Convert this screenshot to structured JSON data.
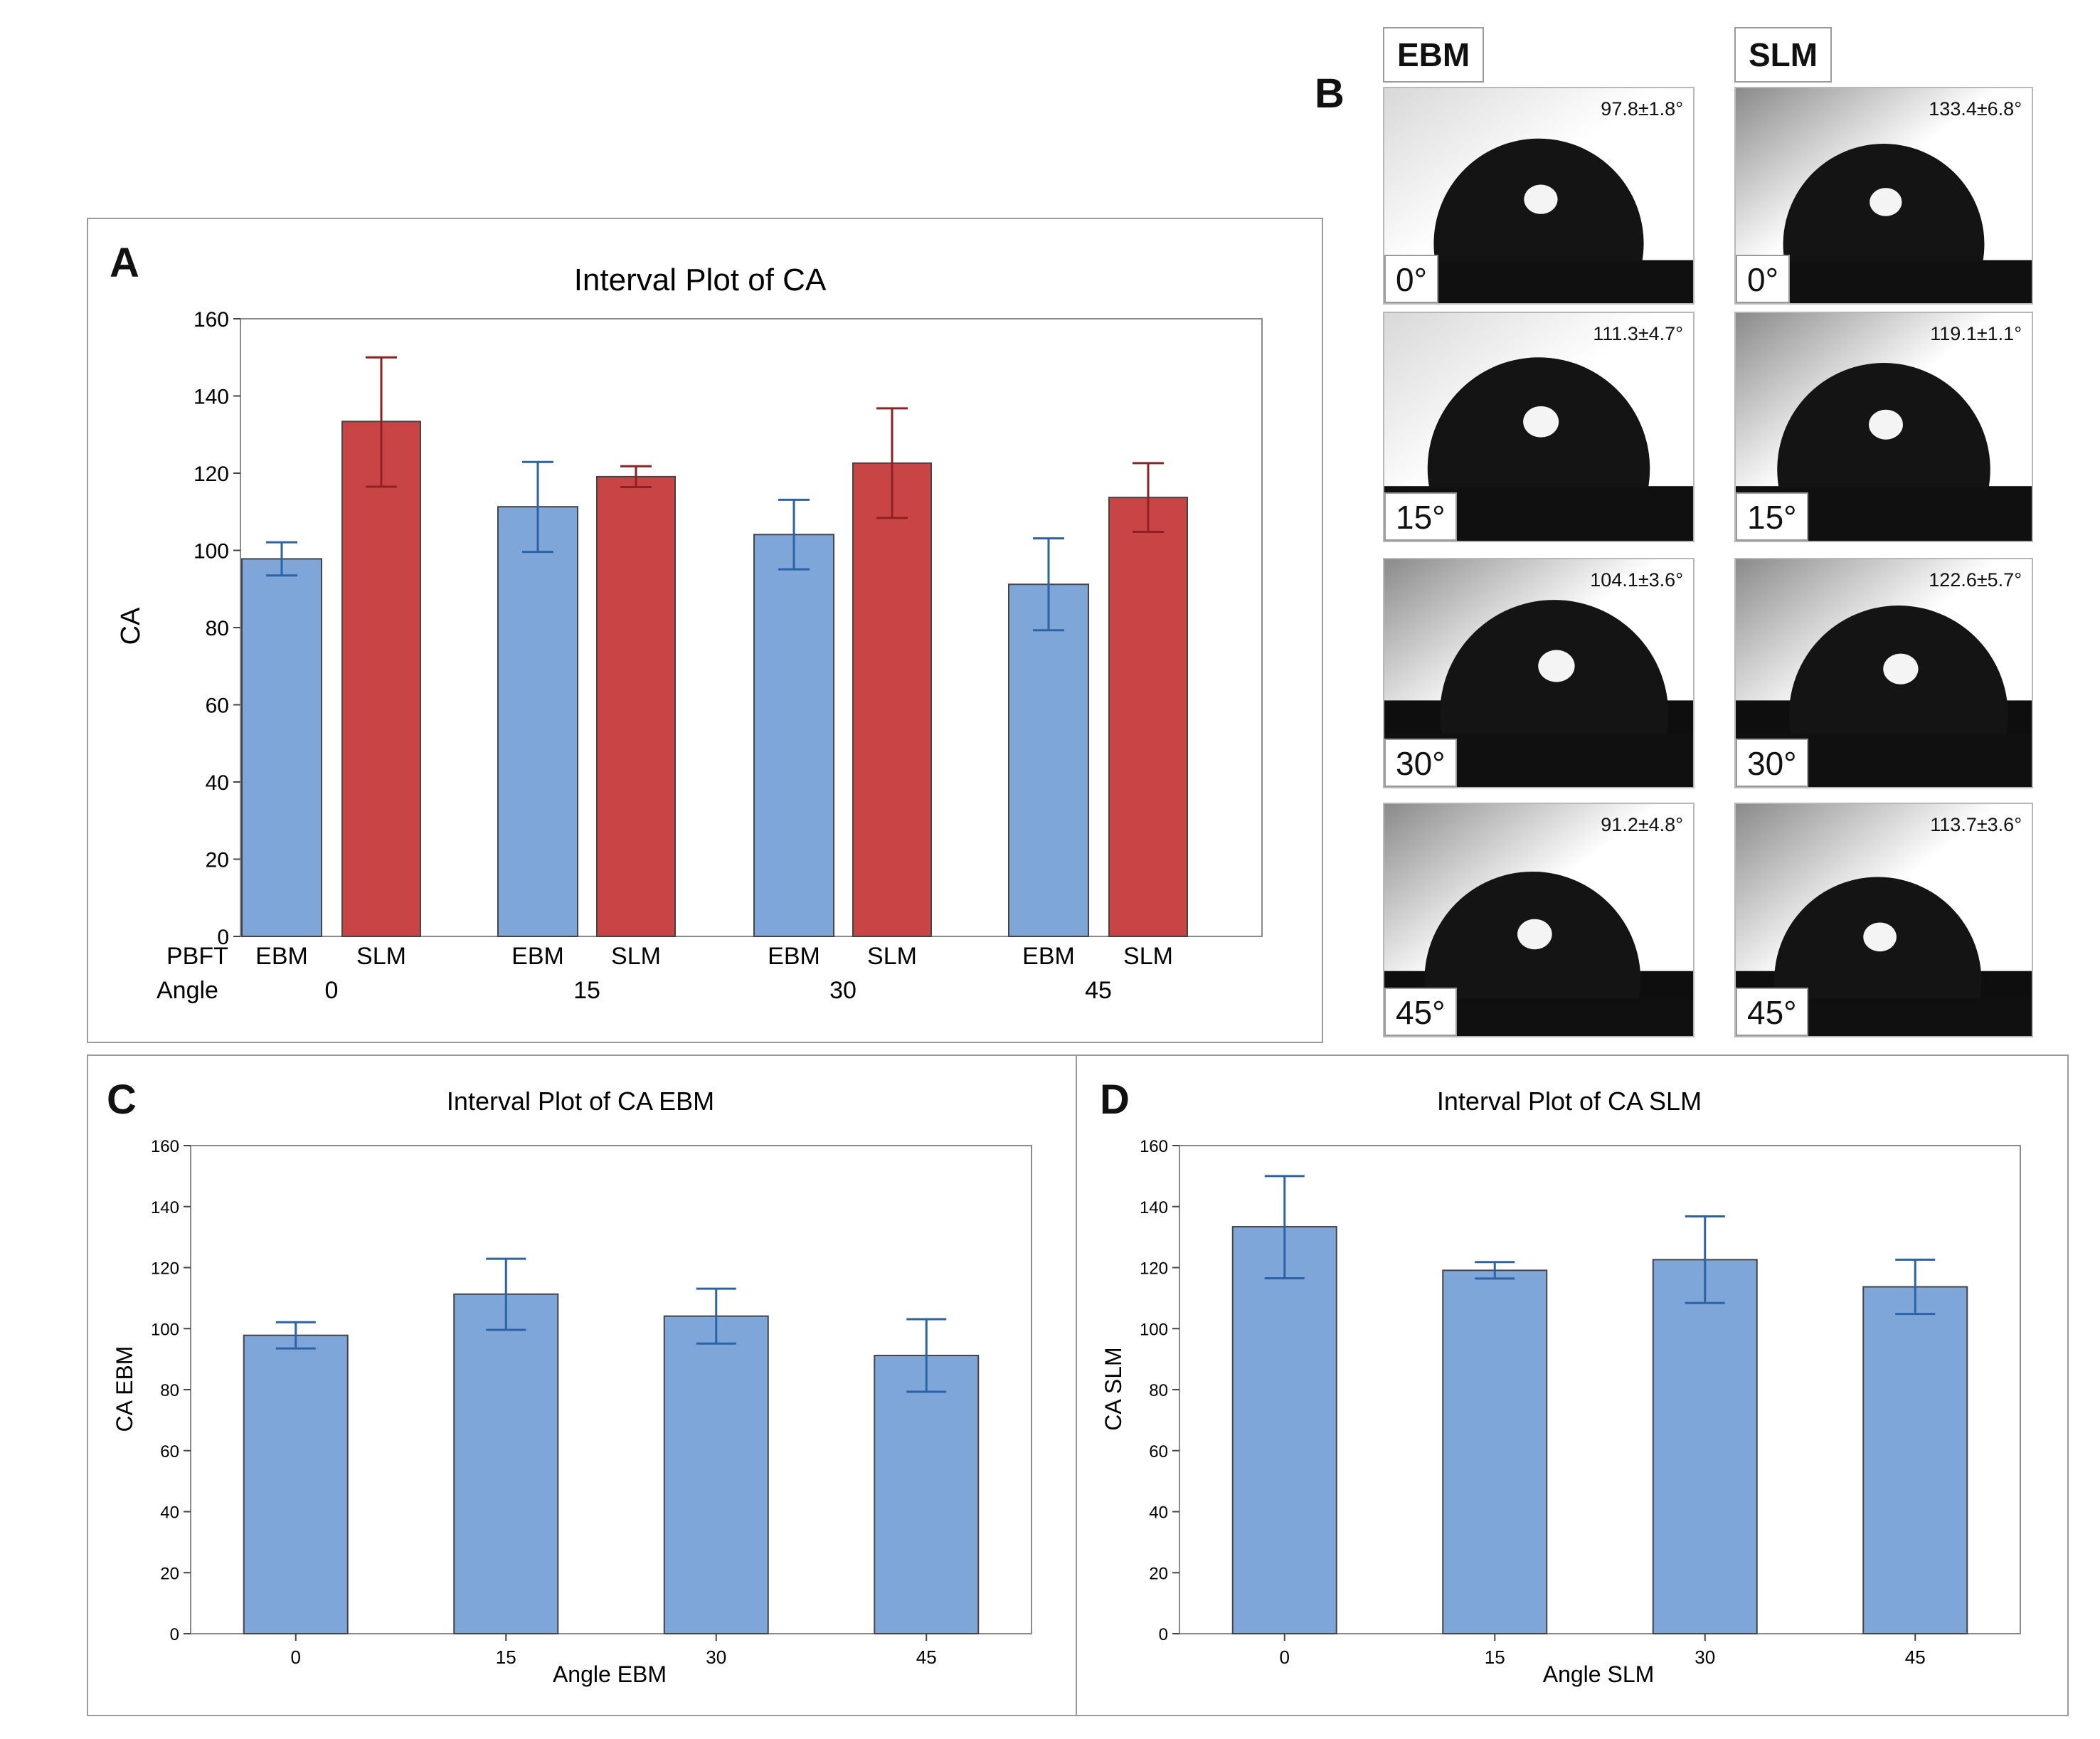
{
  "panel_letters": {
    "a": "A",
    "b": "B",
    "c": "C",
    "d": "D"
  },
  "chart_data": [
    {
      "type": "bar",
      "title": "Interval Plot of CA",
      "ylabel": "CA",
      "ylim": [
        0,
        160
      ],
      "yticks": [
        "0",
        "20",
        "40",
        "60",
        "80",
        "100",
        "120",
        "140",
        "160"
      ],
      "row_labels": {
        "pbft": "PBFT",
        "angle": "Angle"
      },
      "groups": [
        "0",
        "15",
        "30",
        "45"
      ],
      "bar_labels": [
        "EBM",
        "SLM"
      ],
      "colors": {
        "EBM": "#7ea6d8",
        "SLM": "#c94545"
      },
      "errbar_colors": {
        "EBM": "#2a63a6",
        "SLM": "#8e2222"
      },
      "series": [
        {
          "group": "0",
          "pbft": "EBM",
          "value": 97.8,
          "low": 93.5,
          "high": 102.1
        },
        {
          "group": "0",
          "pbft": "SLM",
          "value": 133.4,
          "low": 116.5,
          "high": 150.0
        },
        {
          "group": "15",
          "pbft": "EBM",
          "value": 111.3,
          "low": 99.6,
          "high": 122.9
        },
        {
          "group": "15",
          "pbft": "SLM",
          "value": 119.1,
          "low": 116.4,
          "high": 121.8
        },
        {
          "group": "30",
          "pbft": "EBM",
          "value": 104.1,
          "low": 95.1,
          "high": 113.1
        },
        {
          "group": "30",
          "pbft": "SLM",
          "value": 122.6,
          "low": 108.4,
          "high": 136.8
        },
        {
          "group": "45",
          "pbft": "EBM",
          "value": 91.2,
          "low": 79.3,
          "high": 103.1
        },
        {
          "group": "45",
          "pbft": "SLM",
          "value": 113.7,
          "low": 104.8,
          "high": 122.6
        }
      ]
    },
    {
      "type": "bar",
      "title": "Interval Plot of CA EBM",
      "xlabel": "Angle EBM",
      "ylabel": "CA EBM",
      "ylim": [
        0,
        160
      ],
      "yticks": [
        "0",
        "20",
        "40",
        "60",
        "80",
        "100",
        "120",
        "140",
        "160"
      ],
      "categories": [
        "0",
        "15",
        "30",
        "45"
      ],
      "values": [
        97.8,
        111.3,
        104.1,
        91.2
      ],
      "low": [
        93.5,
        99.6,
        95.1,
        79.3
      ],
      "high": [
        102.1,
        122.9,
        113.1,
        103.1
      ],
      "color": "#7ea6d8",
      "errbar_color": "#2a63a6"
    },
    {
      "type": "bar",
      "title": "Interval Plot of CA SLM",
      "xlabel": "Angle SLM",
      "ylabel": "CA SLM",
      "ylim": [
        0,
        160
      ],
      "yticks": [
        "0",
        "20",
        "40",
        "60",
        "80",
        "100",
        "120",
        "140",
        "160"
      ],
      "categories": [
        "0",
        "15",
        "30",
        "45"
      ],
      "values": [
        133.4,
        119.1,
        122.6,
        113.7
      ],
      "low": [
        116.5,
        116.4,
        108.4,
        104.8
      ],
      "high": [
        150.0,
        121.8,
        136.8,
        122.6
      ],
      "color": "#7ea6d8",
      "errbar_color": "#2a63a6"
    }
  ],
  "droplets": {
    "ebm_header": "EBM",
    "slm_header": "SLM",
    "ebm": [
      {
        "angle": "0°",
        "ca": "97.8±1.8°"
      },
      {
        "angle": "15°",
        "ca": "111.3±4.7°"
      },
      {
        "angle": "30°",
        "ca": "104.1±3.6°"
      },
      {
        "angle": "45°",
        "ca": "91.2±4.8°"
      }
    ],
    "slm": [
      {
        "angle": "0°",
        "ca": "133.4±6.8°"
      },
      {
        "angle": "15°",
        "ca": "119.1±1.1°"
      },
      {
        "angle": "30°",
        "ca": "122.6±5.7°"
      },
      {
        "angle": "45°",
        "ca": "113.7±3.6°"
      }
    ]
  }
}
